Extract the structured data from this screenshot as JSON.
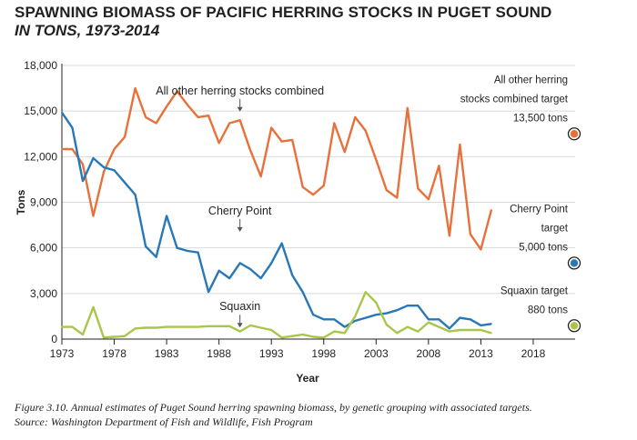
{
  "header": {
    "title": "SPAWNING BIOMASS OF PACIFIC HERRING STOCKS IN PUGET SOUND",
    "subtitle": "IN TONS, 1973-2014"
  },
  "caption": {
    "line1": "Figure 3.10. Annual estimates of Puget Sound herring spawning biomass, by genetic grouping with associated targets.",
    "line2": "Source: Washington Department of Fish and Wildlife, Fish Program"
  },
  "chart_data": {
    "type": "line",
    "xlabel": "Year",
    "ylabel": "Tons",
    "xlim": [
      1973,
      2022
    ],
    "ylim": [
      0,
      18000
    ],
    "x_ticks": [
      1973,
      1978,
      1983,
      1988,
      1993,
      1998,
      2003,
      2008,
      2013,
      2018
    ],
    "y_ticks": [
      0,
      3000,
      6000,
      9000,
      12000,
      15000,
      18000
    ],
    "y_tick_labels": [
      "0",
      "3,000",
      "6,000",
      "9,000",
      "12,000",
      "15,000",
      "18,000"
    ],
    "grid": "horizontal",
    "series": [
      {
        "name": "All other herring stocks combined",
        "color": "#e8703a",
        "x": [
          1973,
          1974,
          1975,
          1976,
          1977,
          1978,
          1979,
          1980,
          1981,
          1982,
          1983,
          1984,
          1985,
          1986,
          1987,
          1988,
          1989,
          1990,
          1991,
          1992,
          1993,
          1994,
          1995,
          1996,
          1997,
          1998,
          1999,
          2000,
          2001,
          2002,
          2003,
          2004,
          2005,
          2006,
          2007,
          2008,
          2009,
          2010,
          2011,
          2012,
          2013,
          2014
        ],
        "values": [
          12500,
          12500,
          11500,
          8100,
          11000,
          12500,
          13300,
          16500,
          14600,
          14200,
          15300,
          16300,
          15400,
          14600,
          14700,
          12900,
          14200,
          14400,
          12400,
          10700,
          13900,
          13000,
          13100,
          10000,
          9500,
          10100,
          14200,
          12300,
          14600,
          13700,
          11800,
          9800,
          9300,
          15200,
          9900,
          9200,
          11400,
          6800,
          12800,
          6900,
          5900,
          8500
        ]
      },
      {
        "name": "Cherry Point",
        "color": "#2878b7",
        "x": [
          1973,
          1974,
          1975,
          1976,
          1977,
          1978,
          1979,
          1980,
          1981,
          1982,
          1983,
          1984,
          1985,
          1986,
          1987,
          1988,
          1989,
          1990,
          1991,
          1992,
          1993,
          1994,
          1995,
          1996,
          1997,
          1998,
          1999,
          2000,
          2001,
          2002,
          2003,
          2004,
          2005,
          2006,
          2007,
          2008,
          2009,
          2010,
          2011,
          2012,
          2013,
          2014
        ],
        "values": [
          14900,
          13900,
          10400,
          11900,
          11300,
          11100,
          10300,
          9500,
          6100,
          5400,
          8100,
          6000,
          5800,
          5700,
          3100,
          4500,
          4000,
          5000,
          4600,
          4000,
          5000,
          6300,
          4200,
          3100,
          1600,
          1300,
          1300,
          800,
          1200,
          1400,
          1600,
          1700,
          1900,
          2200,
          2200,
          1300,
          1300,
          700,
          1400,
          1300,
          900,
          1000
        ]
      },
      {
        "name": "Squaxin",
        "color": "#a8c64a",
        "x": [
          1973,
          1974,
          1975,
          1976,
          1977,
          1978,
          1979,
          1980,
          1981,
          1982,
          1983,
          1984,
          1985,
          1986,
          1987,
          1988,
          1989,
          1990,
          1991,
          1992,
          1993,
          1994,
          1995,
          1996,
          1997,
          1998,
          1999,
          2000,
          2001,
          2002,
          2003,
          2004,
          2005,
          2006,
          2007,
          2008,
          2009,
          2010,
          2011,
          2012,
          2013,
          2014
        ],
        "values": [
          800,
          800,
          300,
          2100,
          100,
          150,
          200,
          700,
          750,
          750,
          800,
          800,
          800,
          800,
          850,
          850,
          850,
          500,
          900,
          750,
          600,
          100,
          200,
          300,
          150,
          100,
          500,
          400,
          1500,
          3100,
          2400,
          950,
          400,
          800,
          500,
          1100,
          800,
          500,
          600,
          600,
          600,
          400
        ]
      }
    ],
    "annotations": [
      {
        "text": "All other herring stocks combined",
        "x": 1990,
        "value": 16100
      },
      {
        "text": "Cherry Point",
        "x": 1990,
        "value": 8200
      },
      {
        "text": "Squaxin",
        "x": 1990,
        "value": 1900
      }
    ],
    "targets": [
      {
        "lines": [
          "All other herring",
          "stocks combined target",
          "13,500 tons"
        ],
        "value": 13500,
        "color": "#e8703a"
      },
      {
        "lines": [
          "Cherry Point",
          "target",
          "5,000 tons"
        ],
        "value": 5000,
        "color": "#2878b7"
      },
      {
        "lines": [
          "Squaxin target",
          "880 tons"
        ],
        "value": 880,
        "color": "#a8c64a"
      }
    ]
  }
}
